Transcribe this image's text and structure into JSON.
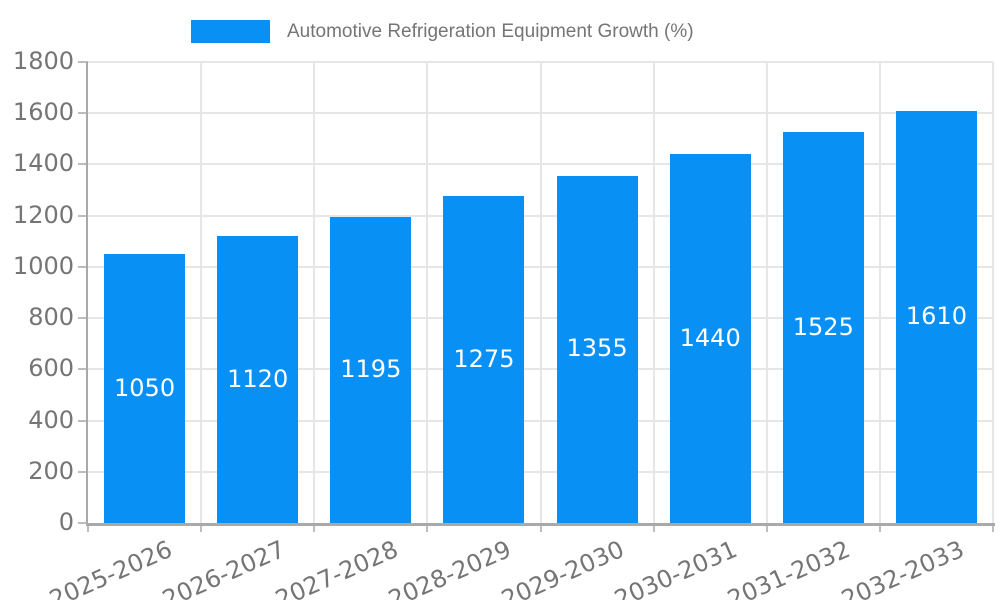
{
  "chart_data": {
    "type": "bar",
    "title": "Automotive Refrigeration Equipment Growth (%)",
    "categories": [
      "2025-2026",
      "2026-2027",
      "2027-2028",
      "2028-2029",
      "2029-2030",
      "2030-2031",
      "2031-2032",
      "2032-2033"
    ],
    "values": [
      1050,
      1120,
      1195,
      1275,
      1355,
      1440,
      1525,
      1610
    ],
    "xlabel": "",
    "ylabel": "",
    "ylim": [
      0,
      1800
    ],
    "yticks": [
      0,
      200,
      400,
      600,
      800,
      1000,
      1200,
      1400,
      1600,
      1800
    ],
    "grid": true,
    "legend_position": "top",
    "value_labels": "centered-inside-bars",
    "colors": {
      "bar": "#0890f5",
      "value_label": "#ffffff",
      "tick_text": "#757575",
      "title_text": "#757575",
      "gridline": "#e6e6e6",
      "axis": "#a9a9a9",
      "tick_mark": "#bdbdbd",
      "background": "#ffffff"
    }
  }
}
